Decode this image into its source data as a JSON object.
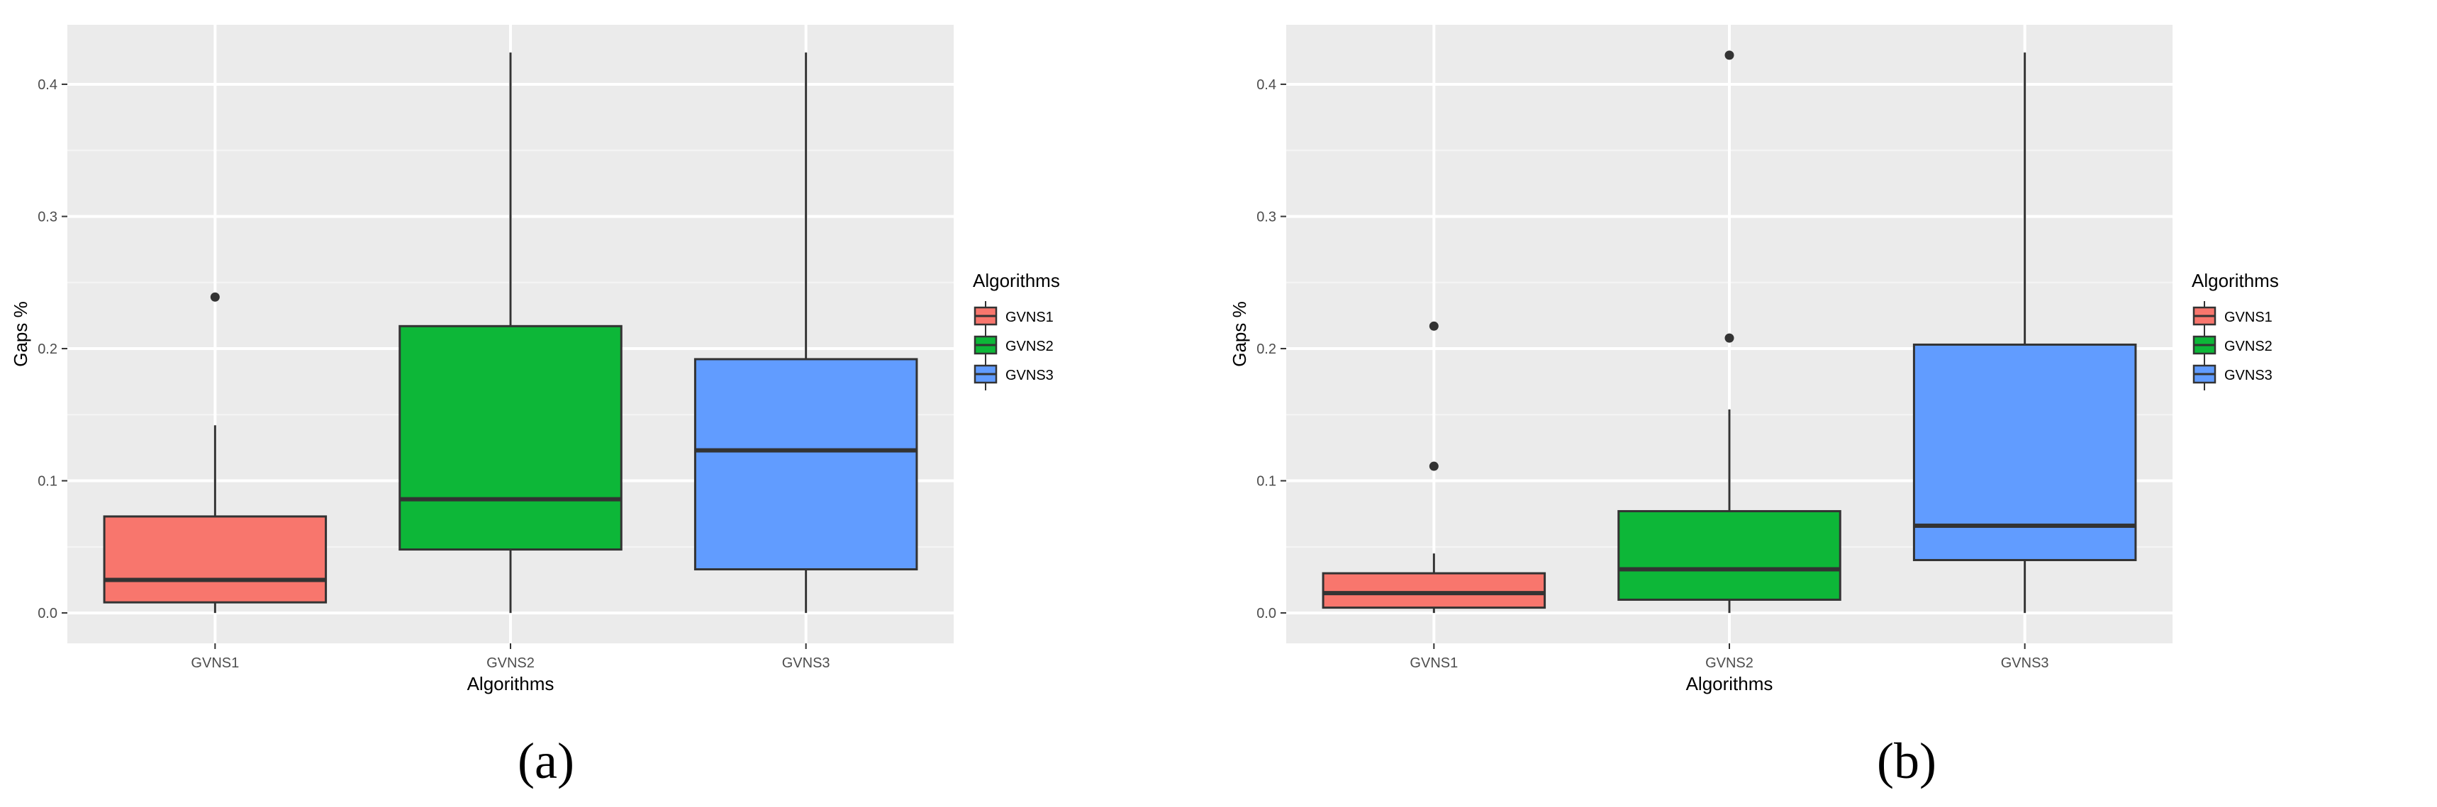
{
  "chart_data": [
    {
      "type": "box",
      "caption": "(a)",
      "xlabel": "Algorithms",
      "ylabel": "Gaps %",
      "categories": [
        "GVNS1",
        "GVNS2",
        "GVNS3"
      ],
      "ylim": [
        -0.023,
        0.445
      ],
      "yticks": [
        0.0,
        0.1,
        0.2,
        0.3,
        0.4
      ],
      "ytick_labels": [
        "0.0",
        "0.1",
        "0.2",
        "0.3",
        "0.4"
      ],
      "grid": true,
      "boxes": [
        {
          "category": "GVNS1",
          "whisker_low": 0.0,
          "q1": 0.008,
          "median": 0.025,
          "q3": 0.073,
          "whisker_high": 0.142,
          "outliers": [
            0.239
          ]
        },
        {
          "category": "GVNS2",
          "whisker_low": 0.0,
          "q1": 0.048,
          "median": 0.086,
          "q3": 0.217,
          "whisker_high": 0.424,
          "outliers": []
        },
        {
          "category": "GVNS3",
          "whisker_low": 0.0,
          "q1": 0.033,
          "median": 0.123,
          "q3": 0.192,
          "whisker_high": 0.424,
          "outliers": []
        }
      ],
      "legend": {
        "title": "Algorithms",
        "position": "right",
        "entries": [
          "GVNS1",
          "GVNS2",
          "GVNS3"
        ]
      }
    },
    {
      "type": "box",
      "caption": "(b)",
      "xlabel": "Algorithms",
      "ylabel": "Gaps %",
      "categories": [
        "GVNS1",
        "GVNS2",
        "GVNS3"
      ],
      "ylim": [
        -0.023,
        0.445
      ],
      "yticks": [
        0.0,
        0.1,
        0.2,
        0.3,
        0.4
      ],
      "ytick_labels": [
        "0.0",
        "0.1",
        "0.2",
        "0.3",
        "0.4"
      ],
      "grid": true,
      "boxes": [
        {
          "category": "GVNS1",
          "whisker_low": 0.0,
          "q1": 0.004,
          "median": 0.015,
          "q3": 0.03,
          "whisker_high": 0.045,
          "outliers": [
            0.111,
            0.217
          ]
        },
        {
          "category": "GVNS2",
          "whisker_low": 0.0,
          "q1": 0.01,
          "median": 0.033,
          "q3": 0.077,
          "whisker_high": 0.154,
          "outliers": [
            0.208,
            0.422
          ]
        },
        {
          "category": "GVNS3",
          "whisker_low": 0.0,
          "q1": 0.04,
          "median": 0.066,
          "q3": 0.203,
          "whisker_high": 0.424,
          "outliers": []
        }
      ],
      "legend": {
        "title": "Algorithms",
        "position": "right",
        "entries": [
          "GVNS1",
          "GVNS2",
          "GVNS3"
        ]
      }
    }
  ],
  "colors": {
    "GVNS1": "#F8766D",
    "GVNS2": "#0DB738",
    "GVNS3": "#619CFF",
    "panel_background": "#EBEBEB",
    "grid": "#FFFFFF"
  }
}
